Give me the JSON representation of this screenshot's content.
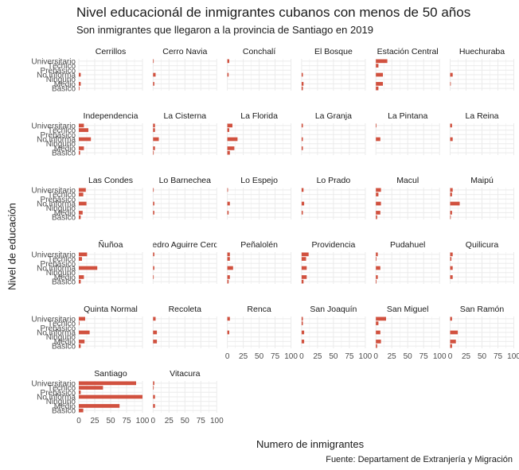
{
  "title": "Nivel educacionál de inmigrantes cubanos con menos de 50 años",
  "subtitle": "Son inmigrantes que llegaron a la provincia de Santiago en 2019",
  "caption": "Fuente: Departament de Extranjería y Migración",
  "colors": {
    "bar": "#d1513f",
    "grid": "#ebebeb",
    "text": "#1a1a1a",
    "axis_text": "#4d4d4d"
  },
  "chart_data": {
    "type": "bar",
    "orientation": "horizontal",
    "facet": true,
    "xlabel": "Numero de inmigrantes",
    "ylabel": "Nivel de educación",
    "xlim": [
      0,
      100
    ],
    "x_ticks": [
      0,
      25,
      50,
      75,
      100
    ],
    "grid": true,
    "categories": [
      "Universitario",
      "Técnico",
      "Prebásico",
      "No informa",
      "Ninguno",
      "Medio",
      "Básico"
    ],
    "panels": [
      {
        "name": "Cerrillos",
        "values": [
          0,
          0,
          0,
          3,
          0,
          3,
          1
        ]
      },
      {
        "name": "Cerro Navia",
        "values": [
          1,
          0,
          0,
          4,
          0,
          2,
          0
        ]
      },
      {
        "name": "Conchalí",
        "values": [
          3,
          0,
          0,
          2,
          0,
          0,
          0
        ]
      },
      {
        "name": "El Bosque",
        "values": [
          0,
          0,
          0,
          2,
          0,
          3,
          2
        ]
      },
      {
        "name": "Estación Central",
        "values": [
          18,
          4,
          0,
          11,
          0,
          11,
          4
        ]
      },
      {
        "name": "Huechuraba",
        "values": [
          0,
          0,
          0,
          4,
          0,
          1,
          0
        ]
      },
      {
        "name": "Independencia",
        "values": [
          8,
          15,
          0,
          19,
          0,
          8,
          2
        ]
      },
      {
        "name": "La Cisterna",
        "values": [
          3,
          3,
          0,
          9,
          0,
          3,
          1
        ]
      },
      {
        "name": "La Florida",
        "values": [
          8,
          3,
          0,
          16,
          0,
          11,
          4
        ]
      },
      {
        "name": "La Granja",
        "values": [
          2,
          0,
          0,
          2,
          0,
          2,
          0
        ]
      },
      {
        "name": "La Pintana",
        "values": [
          1,
          0,
          0,
          7,
          0,
          0,
          0
        ]
      },
      {
        "name": "La Reina",
        "values": [
          3,
          0,
          0,
          4,
          0,
          0,
          0
        ]
      },
      {
        "name": "Las Condes",
        "values": [
          11,
          7,
          0,
          12,
          0,
          6,
          3
        ]
      },
      {
        "name": "Lo Barnechea",
        "values": [
          1,
          0,
          0,
          2,
          0,
          2,
          0
        ]
      },
      {
        "name": "Lo Espejo",
        "values": [
          1,
          0,
          0,
          4,
          0,
          2,
          0
        ]
      },
      {
        "name": "Lo Prado",
        "values": [
          3,
          0,
          0,
          4,
          0,
          2,
          0
        ]
      },
      {
        "name": "Macul",
        "values": [
          8,
          4,
          0,
          8,
          0,
          7,
          2
        ]
      },
      {
        "name": "Maipú",
        "values": [
          4,
          3,
          0,
          15,
          0,
          3,
          1
        ]
      },
      {
        "name": "Ñuñoa",
        "values": [
          13,
          5,
          0,
          29,
          0,
          8,
          3
        ]
      },
      {
        "name": "Pedro Aguirre Cerda",
        "values": [
          2,
          0,
          0,
          2,
          0,
          1,
          0
        ]
      },
      {
        "name": "Peñalolén",
        "values": [
          4,
          4,
          0,
          9,
          0,
          4,
          2
        ]
      },
      {
        "name": "Providencia",
        "values": [
          11,
          7,
          0,
          8,
          0,
          8,
          3
        ]
      },
      {
        "name": "Pudahuel",
        "values": [
          3,
          1,
          0,
          7,
          0,
          3,
          1
        ]
      },
      {
        "name": "Quilicura",
        "values": [
          4,
          2,
          0,
          4,
          0,
          4,
          0
        ]
      },
      {
        "name": "Quinta Normal",
        "values": [
          10,
          1,
          0,
          17,
          0,
          9,
          3
        ]
      },
      {
        "name": "Recoleta",
        "values": [
          4,
          0,
          0,
          6,
          0,
          6,
          0
        ]
      },
      {
        "name": "Renca",
        "values": [
          4,
          0,
          0,
          3,
          0,
          0,
          0
        ]
      },
      {
        "name": "San Joaquín",
        "values": [
          2,
          2,
          0,
          4,
          0,
          4,
          0
        ]
      },
      {
        "name": "San Miguel",
        "values": [
          16,
          4,
          0,
          7,
          0,
          8,
          2
        ]
      },
      {
        "name": "San Ramón",
        "values": [
          3,
          0,
          0,
          12,
          0,
          9,
          3
        ]
      },
      {
        "name": "Santiago",
        "values": [
          90,
          38,
          3,
          100,
          0,
          64,
          7
        ]
      },
      {
        "name": "Vitacura",
        "values": [
          2,
          1,
          0,
          3,
          0,
          3,
          0
        ]
      }
    ]
  }
}
